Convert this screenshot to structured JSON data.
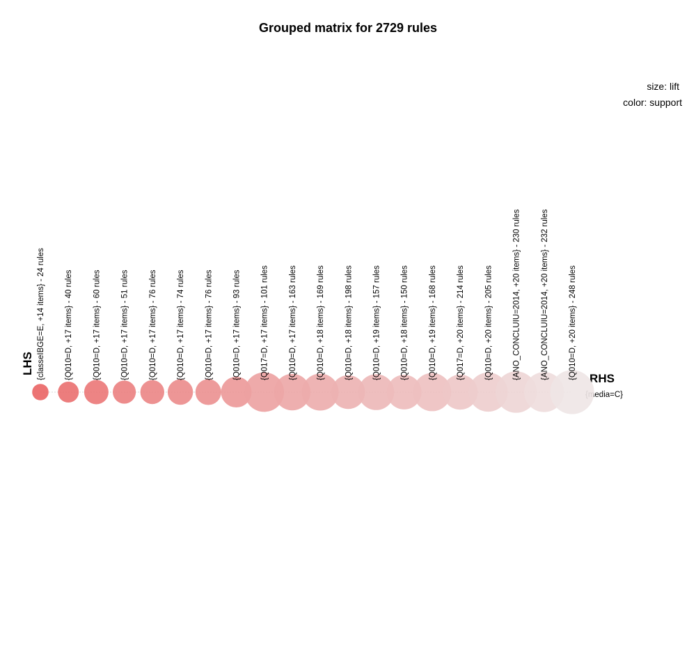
{
  "chart_data": {
    "type": "grouped-matrix",
    "title": "Grouped matrix for 2729 rules",
    "size_legend": "size: lift",
    "color_legend": "color: support",
    "lhs_title": "LHS",
    "rhs_title": "RHS",
    "rhs_items": [
      "{media=C}"
    ],
    "lhs_groups": [
      "{classeIBGE=E, +14 items} - 24 rules",
      "{Q010=D, +17 items} - 40 rules",
      "{Q010=D, +17 items} - 60 rules",
      "{Q010=D, +17 items} - 51 rules",
      "{Q010=D, +17 items} - 76 rules",
      "{Q010=D, +17 items} - 74 rules",
      "{Q010=D, +17 items} - 76 rules",
      "{Q010=D, +17 items} - 93 rules",
      "{Q017=D, +17 items} - 101 rules",
      "{Q010=D, +17 items} - 163 rules",
      "{Q010=D, +18 items} - 169 rules",
      "{Q010=D, +18 items} - 198 rules",
      "{Q010=D, +19 items} - 157 rules",
      "{Q010=D, +18 items} - 150 rules",
      "{Q010=D, +19 items} - 168 rules",
      "{Q017=D, +20 items} - 214 rules",
      "{Q010=D, +20 items} - 205 rules",
      "{ANO_CONCLUIU=2014, +20 items} - 230 rules",
      "{ANO_CONCLUIU=2014, +20 items} - 232 rules",
      "{Q010=D, +20 items} - 248 rules"
    ],
    "lift_relative": [
      0.18,
      0.28,
      0.36,
      0.33,
      0.35,
      0.38,
      0.39,
      0.5,
      0.7,
      0.63,
      0.64,
      0.57,
      0.62,
      0.59,
      0.67,
      0.6,
      0.69,
      0.74,
      0.71,
      0.8
    ],
    "support_relative": [
      1.0,
      0.92,
      0.86,
      0.8,
      0.76,
      0.72,
      0.68,
      0.62,
      0.56,
      0.52,
      0.48,
      0.44,
      0.4,
      0.37,
      0.33,
      0.29,
      0.24,
      0.18,
      0.12,
      0.06
    ]
  }
}
